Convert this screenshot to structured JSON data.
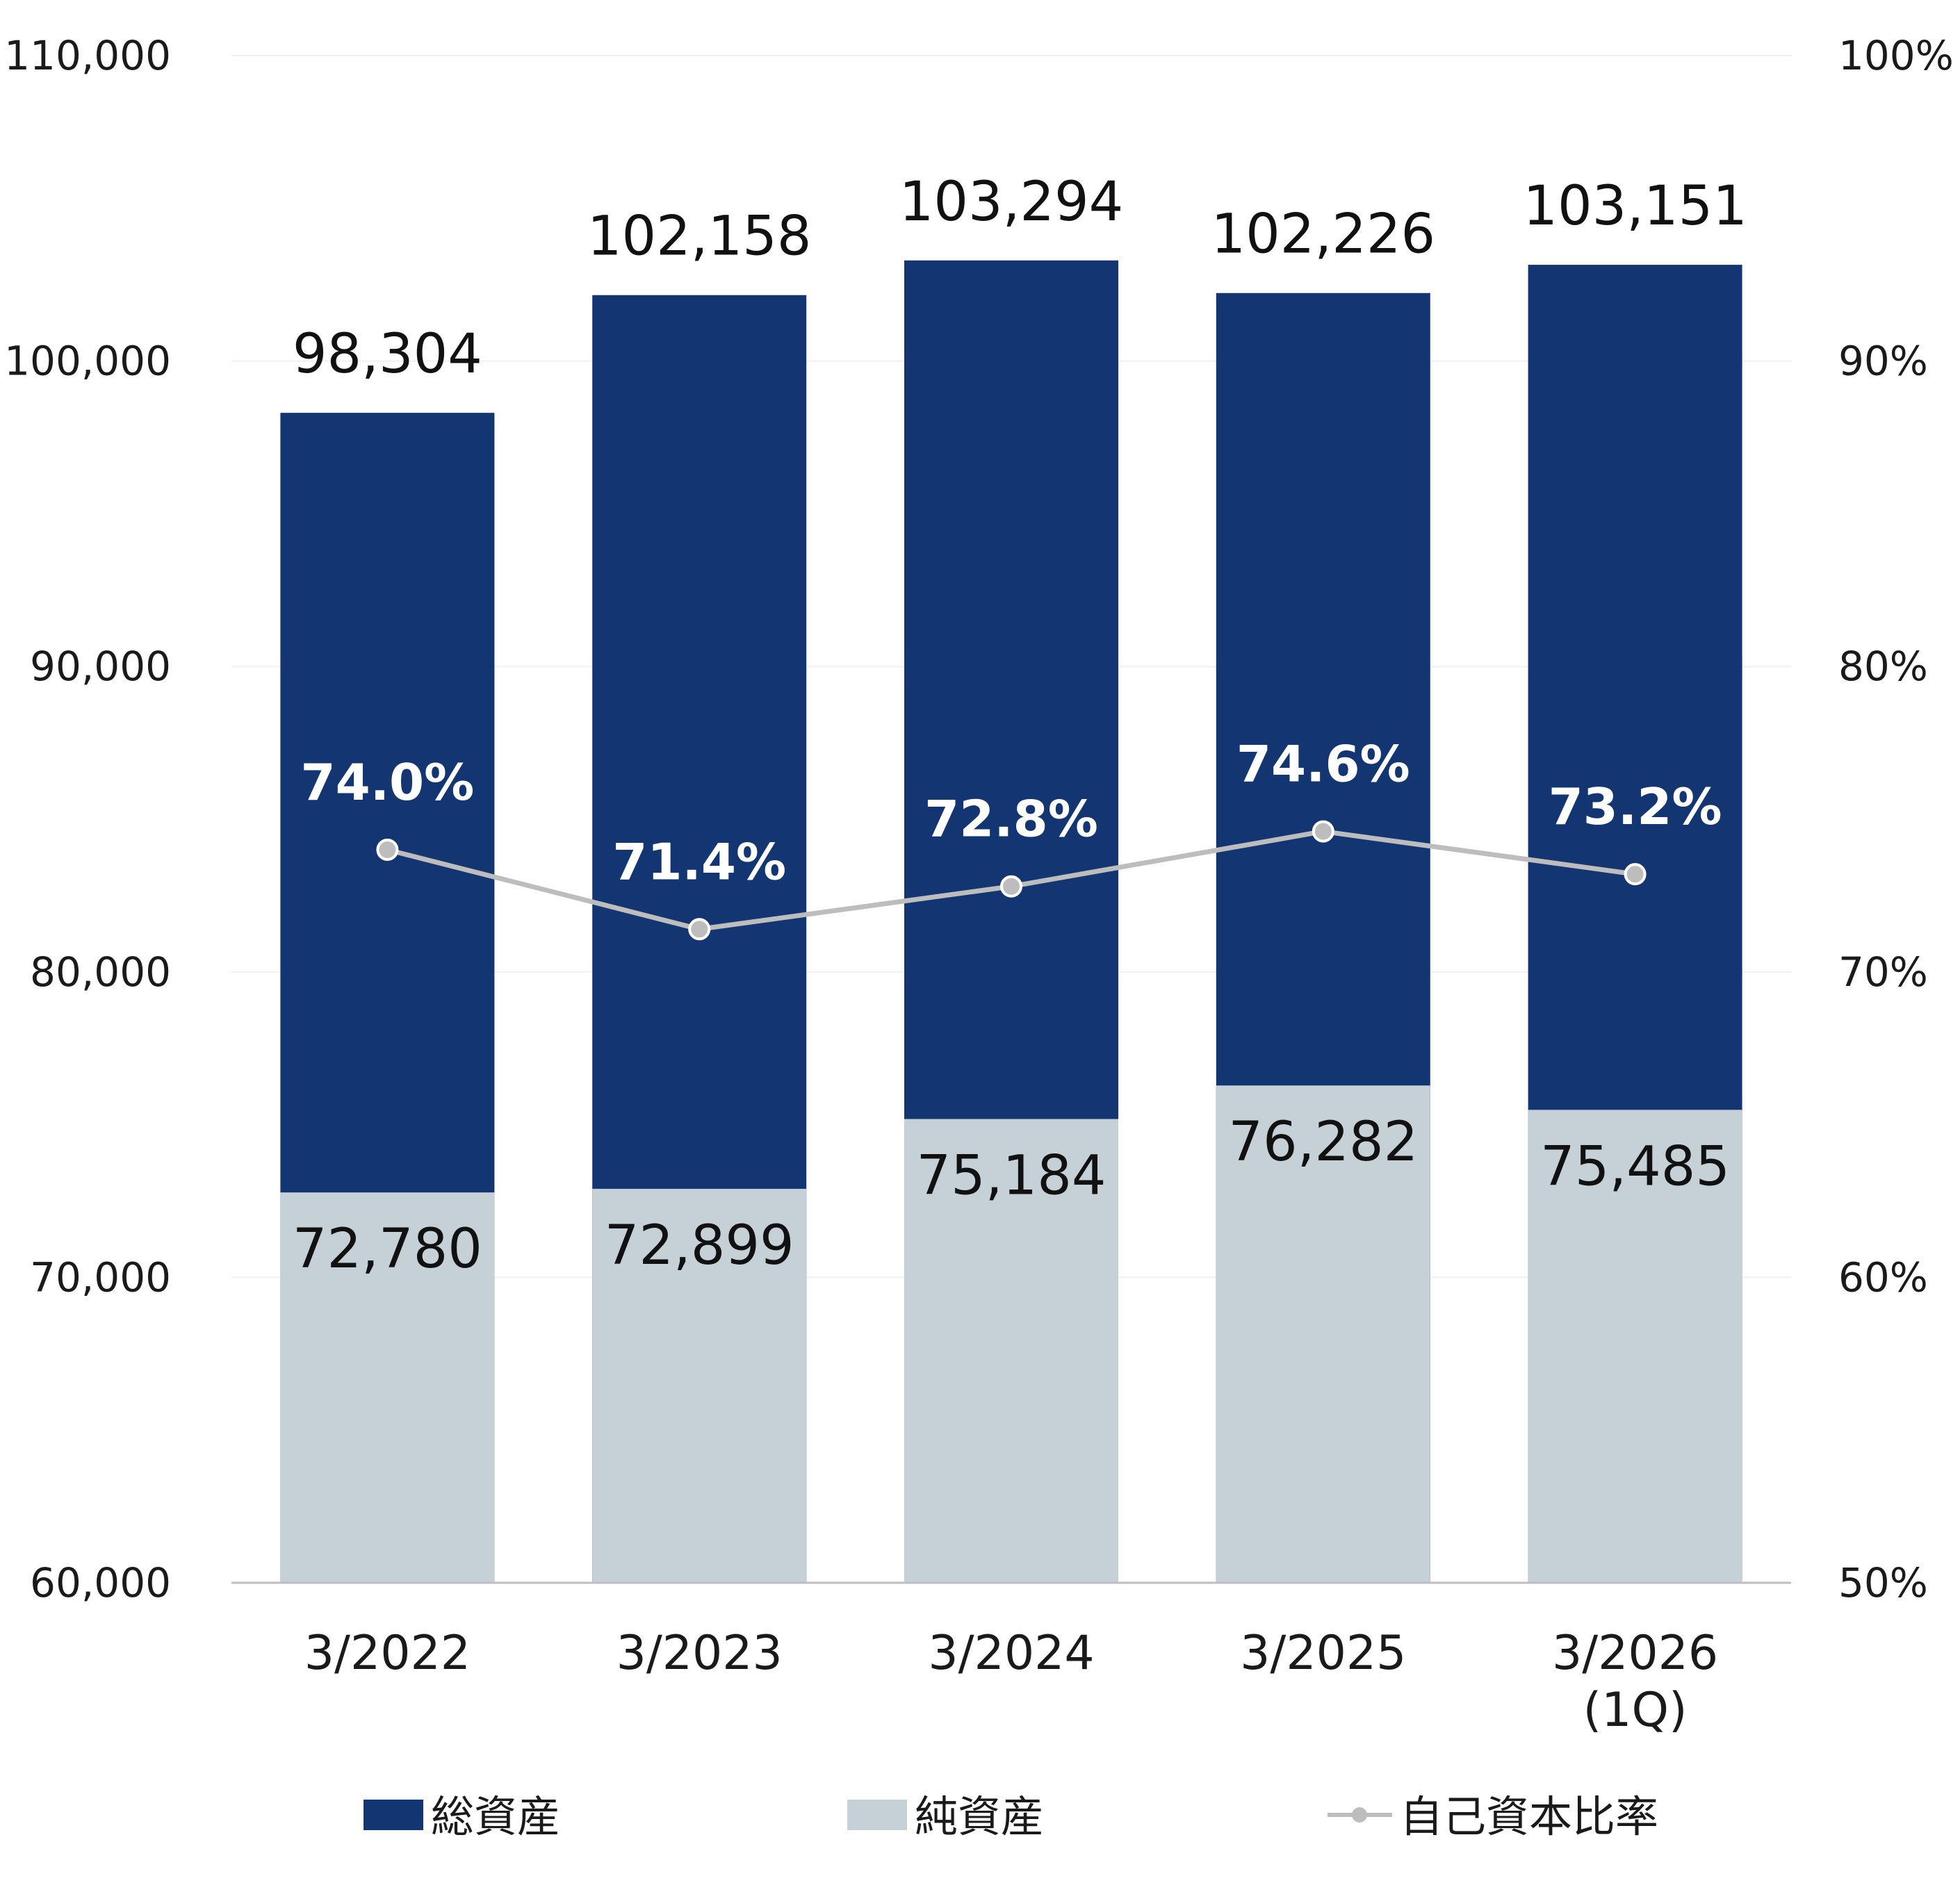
{
  "chart_data": {
    "type": "bar",
    "stacked": false,
    "categories": [
      "3/2022",
      "3/2023",
      "3/2024",
      "3/2025",
      "3/2026\n(1Q)"
    ],
    "series": [
      {
        "name": "総資産",
        "type": "bar",
        "axis": "left",
        "color": "#133672",
        "values": [
          98304,
          102158,
          103294,
          102226,
          103151
        ]
      },
      {
        "name": "純資産",
        "type": "bar",
        "axis": "left",
        "color": "#c6d0d7",
        "values": [
          72780,
          72899,
          75184,
          76282,
          75485
        ]
      },
      {
        "name": "自己資本比率",
        "type": "line",
        "axis": "right",
        "color": "#bdbdbd",
        "values": [
          74.0,
          71.4,
          72.8,
          74.6,
          73.2
        ],
        "unit": "%"
      }
    ],
    "value_labels": {
      "total": [
        "98,304",
        "102,158",
        "103,294",
        "102,226",
        "103,151"
      ],
      "net": [
        "72,780",
        "72,899",
        "75,184",
        "76,282",
        "75,485"
      ],
      "ratio": [
        "74.0%",
        "71.4%",
        "72.8%",
        "74.6%",
        "73.2%"
      ]
    },
    "y_left": {
      "range": [
        60000,
        110000
      ],
      "ticks": [
        60000,
        70000,
        80000,
        90000,
        100000,
        110000
      ],
      "tick_labels": [
        "60,000",
        "70,000",
        "80,000",
        "90,000",
        "100,000",
        "110,000"
      ]
    },
    "y_right": {
      "range": [
        50,
        100
      ],
      "ticks": [
        50,
        60,
        70,
        80,
        90,
        100
      ],
      "tick_labels": [
        "50%",
        "60%",
        "70%",
        "80%",
        "90%",
        "100%"
      ]
    },
    "grid": true,
    "legend_position": "bottom",
    "title": "",
    "xlabel": "",
    "ylabel": ""
  }
}
